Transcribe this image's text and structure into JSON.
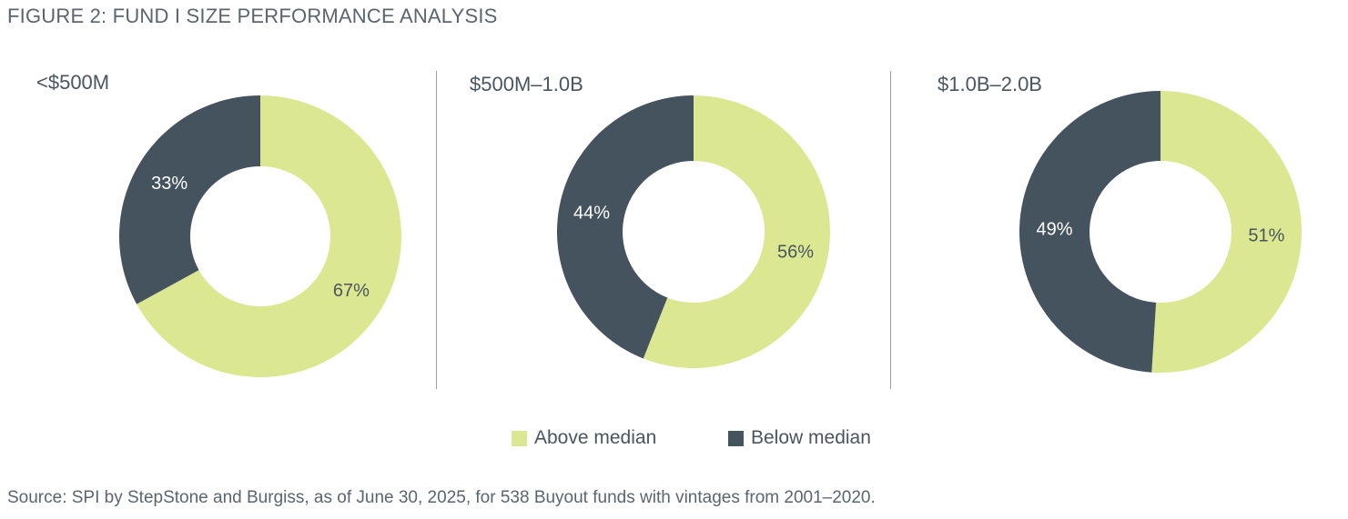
{
  "figure_title": "FIGURE 2: FUND I SIZE PERFORMANCE ANALYSIS",
  "source": "Source: SPI by StepStone and Burgiss, as of June 30, 2025, for 538 Buyout funds with vintages from 2001–2020.",
  "colors": {
    "above": "#dce891",
    "below": "#45535f",
    "label_on_light": "#4a5560",
    "label_on_dark": "#ffffff"
  },
  "legend": {
    "above_label": "Above median",
    "below_label": "Below median"
  },
  "chart_data": [
    {
      "type": "pie",
      "subtype": "donut",
      "title": "<$500M",
      "series": [
        {
          "name": "Above median",
          "value": 67,
          "label": "67%"
        },
        {
          "name": "Below median",
          "value": 33,
          "label": "33%"
        }
      ]
    },
    {
      "type": "pie",
      "subtype": "donut",
      "title": "$500M–1.0B",
      "series": [
        {
          "name": "Above median",
          "value": 56,
          "label": "56%"
        },
        {
          "name": "Below median",
          "value": 44,
          "label": "44%"
        }
      ]
    },
    {
      "type": "pie",
      "subtype": "donut",
      "title": "$1.0B–2.0B",
      "series": [
        {
          "name": "Above median",
          "value": 51,
          "label": "51%"
        },
        {
          "name": "Below median",
          "value": 49,
          "label": "49%"
        }
      ]
    }
  ]
}
